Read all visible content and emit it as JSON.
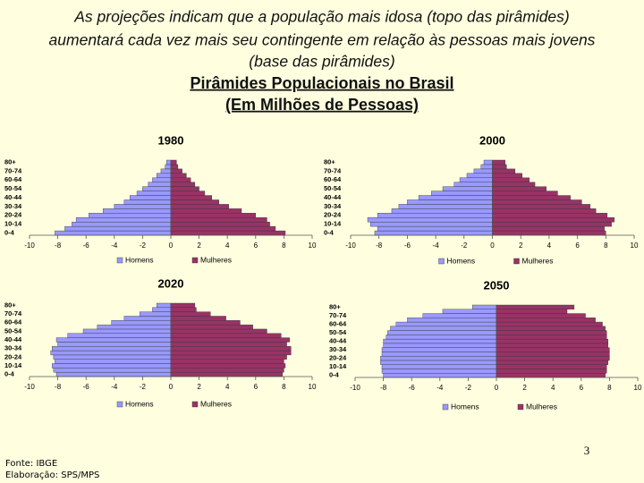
{
  "header": {
    "lines": [
      "As projeções indicam que a população mais idosa (topo das pirâmides)",
      "aumentará cada vez mais seu contingente em relação às pessoas mais jovens",
      "(base das pirâmides)"
    ],
    "title": "Pirâmides Populacionais no Brasil",
    "subtitle": "(Em Milhões de Pessoas)"
  },
  "chart_data": [
    {
      "type": "pyramid",
      "title": "1980",
      "categories": [
        "0-4",
        null,
        "10-14",
        null,
        "20-24",
        null,
        "30-34",
        null,
        "40-44",
        null,
        "50-54",
        null,
        "60-64",
        null,
        "70-74",
        null,
        "80+"
      ],
      "series": [
        {
          "name": "Homens",
          "color": "#9999ff",
          "values": [
            -8.2,
            -7.5,
            -7.0,
            -6.7,
            -5.8,
            -4.8,
            -4.0,
            -3.3,
            -2.9,
            -2.4,
            -2.0,
            -1.6,
            -1.3,
            -1.0,
            -0.7,
            -0.4,
            -0.3
          ]
        },
        {
          "name": "Mulheres",
          "color": "#993366",
          "values": [
            8.1,
            7.4,
            7.0,
            6.8,
            6.0,
            5.0,
            4.1,
            3.4,
            2.9,
            2.4,
            2.0,
            1.7,
            1.4,
            1.1,
            0.8,
            0.5,
            0.4
          ]
        }
      ],
      "xlim": [
        -10,
        10
      ],
      "xticks": [
        -10,
        -8,
        -6,
        -4,
        -2,
        0,
        2,
        4,
        6,
        8,
        10
      ]
    },
    {
      "type": "pyramid",
      "title": "2000",
      "categories": [
        "0-4",
        null,
        "10-14",
        null,
        "20-24",
        null,
        "30-34",
        null,
        "40-44",
        null,
        "50-54",
        null,
        "60-64",
        null,
        "70-74",
        null,
        "80+"
      ],
      "series": [
        {
          "name": "Homens",
          "color": "#9999ff",
          "values": [
            -8.3,
            -8.1,
            -8.6,
            -8.8,
            -8.1,
            -7.1,
            -6.6,
            -6.0,
            -5.2,
            -4.3,
            -3.5,
            -2.7,
            -2.3,
            -1.8,
            -1.3,
            -0.8,
            -0.6
          ]
        },
        {
          "name": "Mulheres",
          "color": "#993366",
          "values": [
            8.0,
            7.9,
            8.4,
            8.6,
            8.1,
            7.3,
            6.9,
            6.3,
            5.5,
            4.6,
            3.8,
            3.0,
            2.6,
            2.1,
            1.6,
            1.0,
            0.9
          ]
        }
      ],
      "xlim": [
        -10,
        10
      ],
      "xticks": [
        -10,
        -8,
        -6,
        -4,
        -2,
        0,
        2,
        4,
        6,
        8,
        10
      ]
    },
    {
      "type": "pyramid",
      "title": "2020",
      "categories": [
        "0-4",
        null,
        "10-14",
        null,
        "20-24",
        null,
        "30-34",
        null,
        "40-44",
        null,
        "50-54",
        null,
        "60-64",
        null,
        "70-74",
        null,
        "80+"
      ],
      "series": [
        {
          "name": "Homens",
          "color": "#9999ff",
          "values": [
            -8.1,
            -8.3,
            -8.4,
            -8.2,
            -8.3,
            -8.5,
            -8.4,
            -8.0,
            -8.1,
            -7.3,
            -6.2,
            -5.2,
            -4.2,
            -3.3,
            -2.2,
            -1.3,
            -1.0
          ]
        },
        {
          "name": "Mulheres",
          "color": "#993366",
          "values": [
            7.9,
            8.0,
            8.1,
            8.0,
            8.2,
            8.5,
            8.5,
            8.2,
            8.4,
            7.8,
            6.8,
            5.8,
            4.9,
            3.9,
            2.8,
            1.8,
            1.7
          ]
        }
      ],
      "xlim": [
        -10,
        10
      ],
      "xticks": [
        -10,
        -8,
        -6,
        -4,
        -2,
        0,
        2,
        4,
        6,
        8,
        10
      ]
    },
    {
      "type": "pyramid",
      "title": "2050",
      "categories": [
        "0-4",
        null,
        "10-14",
        null,
        "20-24",
        null,
        "30-34",
        null,
        "40-44",
        null,
        "50-54",
        null,
        "60-64",
        null,
        "70-74",
        null,
        "80+"
      ],
      "series": [
        {
          "name": "Homens",
          "color": "#9999ff",
          "values": [
            -8.0,
            -8.1,
            -8.1,
            -8.2,
            -8.2,
            -8.1,
            -8.1,
            -8.0,
            -8.0,
            -7.8,
            -7.7,
            -7.5,
            -7.1,
            -6.3,
            -5.2,
            -3.8,
            -1.7
          ]
        },
        {
          "name": "Mulheres",
          "color": "#993366",
          "values": [
            7.7,
            7.8,
            7.8,
            7.9,
            8.0,
            8.0,
            8.0,
            7.9,
            7.9,
            7.8,
            7.8,
            7.7,
            7.5,
            7.0,
            6.3,
            5.0,
            5.5
          ]
        }
      ],
      "xlim": [
        -10,
        10
      ],
      "xticks": [
        -10,
        -8,
        -6,
        -4,
        -2,
        0,
        2,
        4,
        6,
        8,
        10
      ]
    }
  ],
  "footer": {
    "source": "Fonte: IBGE",
    "credit": "Elaboração: SPS/MPS"
  },
  "page_number": "3"
}
